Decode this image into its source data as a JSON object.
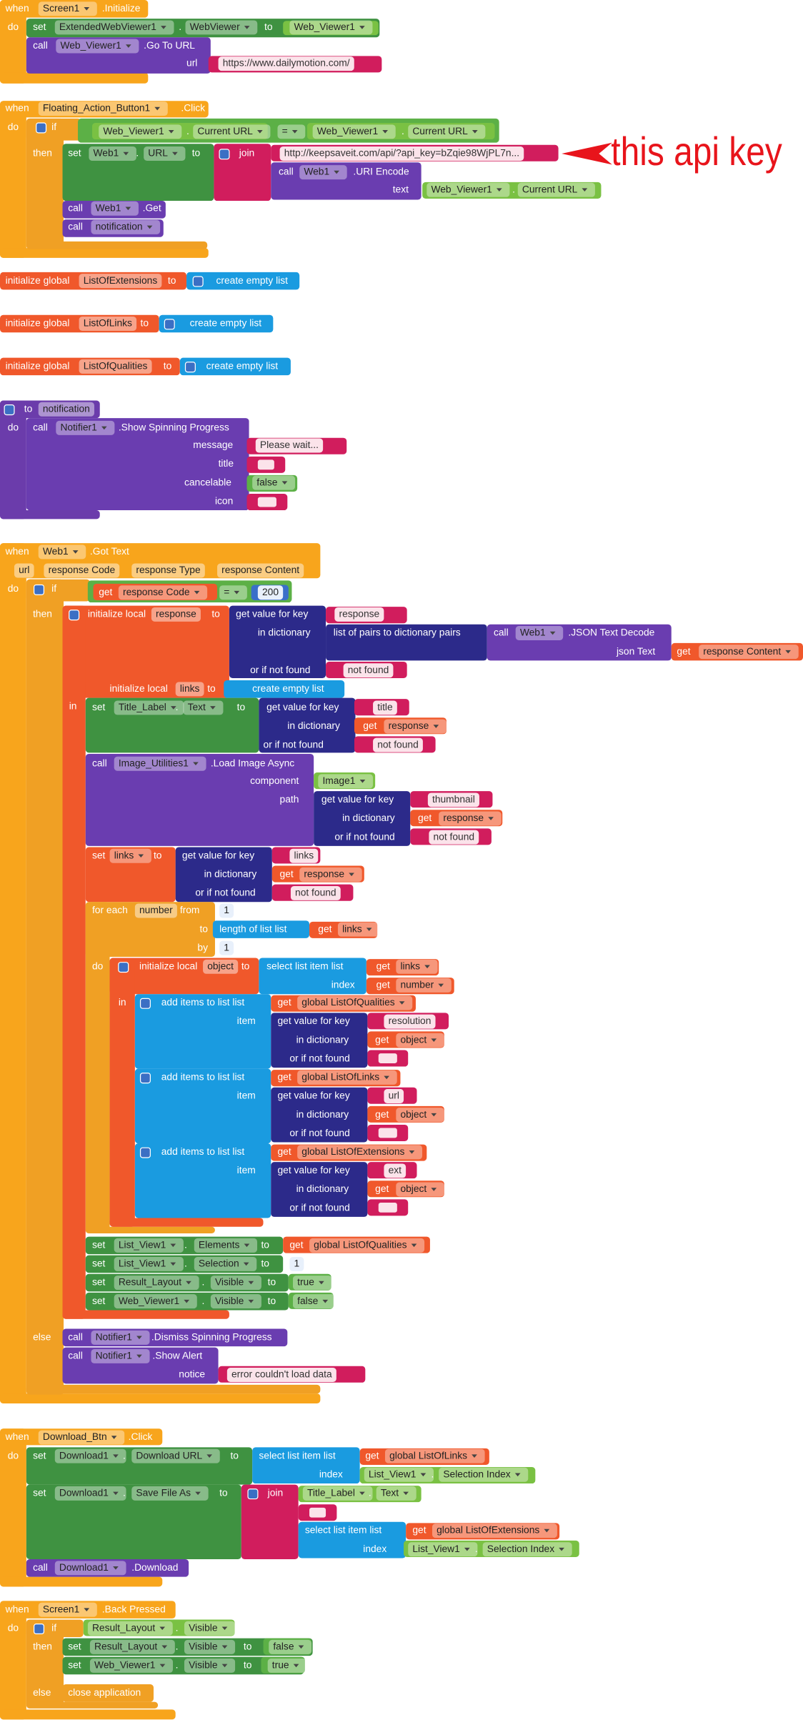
{
  "annotation": "this api key",
  "blocks": [
    [
      "when",
      "Screen1",
      ".Initialize",
      "do",
      "set",
      "ExtendedWebViewer1",
      ".",
      "WebViewer",
      "to",
      "Web_Viewer1",
      "call",
      "Web_Viewer1",
      ".Go To URL",
      "url",
      "https://www.dailymotion.com/"
    ],
    [
      "when",
      "Floating_Action_Button1",
      ".Click",
      "do",
      "if",
      "Web_Viewer1",
      ".",
      "Current URL",
      "=",
      "Web_Viewer1",
      ".",
      "Current URL",
      "then",
      "set",
      "Web1",
      ".",
      "URL",
      "to",
      "join",
      "http://keepsaveit.com/api/?api_key=bZqie98WjPL7n...",
      "call",
      "Web1",
      ".URI Encode",
      "text",
      "Web_Viewer1",
      ".",
      "Current URL",
      "call",
      "Web1",
      ".Get",
      "call",
      "notification"
    ],
    [
      "initialize global",
      "ListOfExtensions",
      "to",
      "create empty list"
    ],
    [
      "initialize global",
      "ListOfLinks",
      "to",
      "create empty list"
    ],
    [
      "initialize global",
      "ListOfQualities",
      "to",
      "create empty list"
    ],
    [
      "to",
      "notification",
      "do",
      "call",
      "Notifier1",
      ".Show Spinning Progress",
      "message",
      "Please wait...",
      "title",
      "cancelable",
      "false",
      "icon"
    ],
    [
      "when",
      "Web1",
      ".Got Text",
      "url",
      "response Code",
      "response Type",
      "response Content",
      "do",
      "if",
      "get",
      "response Code",
      "=",
      200,
      "then",
      "initialize local",
      "response",
      "to",
      "get value for key",
      "response",
      "in dictionary",
      "list of pairs to dictionary  pairs",
      "call",
      "Web1",
      ".JSON Text Decode",
      "json Text",
      "get",
      "response Content",
      "or if not found",
      "not found",
      "initialize local",
      "links",
      "to",
      "create empty list",
      "in",
      "set",
      "Title_Label",
      ".",
      "Text",
      "to",
      "get value for key",
      "title",
      "in dictionary",
      "get",
      "response",
      "or if not found",
      "not found",
      "call",
      "Image_Utilities1",
      ".Load Image Async",
      "component",
      "Image1",
      "path",
      "get value for key",
      "thumbnail",
      "in dictionary",
      "get",
      "response",
      "or if not found",
      "not found",
      "set",
      "links",
      "to",
      "get value for key",
      "links",
      "in dictionary",
      "get",
      "response",
      "or if not found",
      "not found",
      "for each",
      "number",
      "from",
      1,
      "to",
      "length of list  list",
      "get",
      "links",
      "by",
      1,
      "do",
      "initialize local",
      "object",
      "to",
      "select list item  list",
      "get",
      "links",
      "index",
      "get",
      "number",
      "in",
      "add items to list  list",
      "get",
      "global ListOfQualities",
      "item",
      "get value for key",
      "resolution",
      "in dictionary",
      "get",
      "object",
      "or if not found",
      "add items to list  list",
      "get",
      "global ListOfLinks",
      "item",
      "get value for key",
      "url",
      "in dictionary",
      "get",
      "object",
      "or if not found",
      "add items to list  list",
      "get",
      "global ListOfExtensions",
      "item",
      "get value for key",
      "ext",
      "in dictionary",
      "get",
      "object",
      "or if not found",
      "set",
      "List_View1",
      ".",
      "Elements",
      "to",
      "get",
      "global ListOfQualities",
      "set",
      "List_View1",
      ".",
      "Selection",
      "to",
      1,
      "set",
      "Result_Layout",
      ".",
      "Visible",
      "to",
      "true",
      "set",
      "Web_Viewer1",
      ".",
      "Visible",
      "to",
      "false",
      "else",
      "call",
      "Notifier1",
      ".Dismiss Spinning Progress",
      "call",
      "Notifier1",
      ".Show Alert",
      "notice",
      "error  couldn't load data"
    ],
    [
      "when",
      "Download_Btn",
      ".Click",
      "do",
      "set",
      "Download1",
      ".",
      "Download URL",
      "to",
      "select list item  list",
      "get",
      "global ListOfLinks",
      "index",
      "List_View1",
      ".",
      "Selection Index",
      "set",
      "Download1",
      ".",
      "Save File As",
      "to",
      "join",
      "Title_Label",
      ".",
      "Text",
      "select list item  list",
      "get",
      "global ListOfExtensions",
      "index",
      "List_View1",
      ".",
      "Selection Index",
      "call",
      "Download1",
      ".Download"
    ],
    [
      "when",
      "Screen1",
      ".Back Pressed",
      "do",
      "if",
      "Result_Layout",
      ".",
      "Visible",
      "then",
      "set",
      "Result_Layout",
      ".",
      "Visible",
      "to",
      "false",
      "set",
      "Web_Viewer1",
      ".",
      "Visible",
      "to",
      "true",
      "else",
      "close application"
    ]
  ]
}
